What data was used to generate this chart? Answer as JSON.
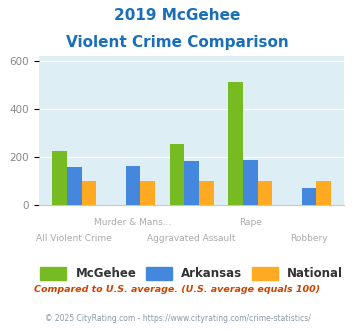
{
  "title_line1": "2019 McGehee",
  "title_line2": "Violent Crime Comparison",
  "title_color": "#1a6fba",
  "categories": [
    "All Violent Crime",
    "Murder & Mans...",
    "Aggravated Assault",
    "Rape",
    "Robbery"
  ],
  "cat_labels_row1": [
    "",
    "Murder & Mans...",
    "",
    "Rape",
    ""
  ],
  "cat_labels_row2": [
    "All Violent Crime",
    "",
    "Aggravated Assault",
    "",
    "Robbery"
  ],
  "mcgehee": [
    225,
    0,
    255,
    510,
    0
  ],
  "arkansas": [
    155,
    163,
    182,
    188,
    68
  ],
  "national": [
    100,
    100,
    100,
    100,
    100
  ],
  "mcgehee_color": "#77bb22",
  "arkansas_color": "#4488dd",
  "national_color": "#ffaa22",
  "bg_color": "#ddeef5",
  "ylim": [
    0,
    620
  ],
  "yticks": [
    0,
    200,
    400,
    600
  ],
  "ylabel_color": "#888888",
  "bar_width": 0.25,
  "legend_labels": [
    "McGehee",
    "Arkansas",
    "National"
  ],
  "footnote1": "Compared to U.S. average. (U.S. average equals 100)",
  "footnote2": "© 2025 CityRating.com - https://www.cityrating.com/crime-statistics/",
  "footnote1_color": "#cc4400",
  "footnote2_color": "#8899aa"
}
